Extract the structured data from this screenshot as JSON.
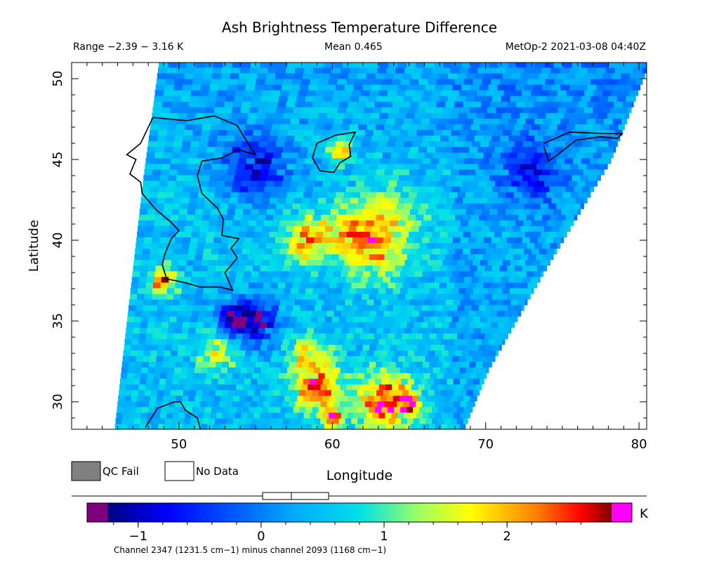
{
  "chart_data": {
    "type": "heatmap",
    "title": "Ash Brightness Temperature Difference",
    "header": {
      "range": "Range −2.39 − 3.16 K",
      "mean": "Mean 0.465",
      "source": "MetOp-2 2021-03-08 04:40Z"
    },
    "xlabel": "Longitude",
    "ylabel": "Latitude",
    "xlim": [
      43,
      80.5
    ],
    "ylim": [
      28.3,
      51
    ],
    "x_ticks": [
      50,
      60,
      70,
      80
    ],
    "y_ticks": [
      30,
      35,
      40,
      45,
      50
    ],
    "legend": [
      {
        "label": "QC Fail",
        "color": "#808080"
      },
      {
        "label": "No Data",
        "color": "#ffffff"
      }
    ],
    "colorbar": {
      "unit": "K",
      "range": [
        -1.25,
        2.85
      ],
      "ticks": [
        -1,
        0,
        1,
        2
      ],
      "tick_labels": [
        "−1",
        "0",
        "1",
        "2"
      ],
      "under_color": "#800080",
      "over_color": "#ff00ff",
      "caption": "Channel 2347 (1231.5 cm−1) minus channel 2093 (1168 cm−1)",
      "stats_box": {
        "mean": 0.465,
        "low": 0.1,
        "high": 0.62
      }
    },
    "swath": {
      "left_edge": [
        [
          48.7,
          51
        ],
        [
          47.7,
          44
        ],
        [
          45.8,
          28.3
        ]
      ],
      "right_edge": [
        [
          80.5,
          50.5
        ],
        [
          78.2,
          45
        ],
        [
          73.8,
          38
        ],
        [
          70.2,
          32
        ],
        [
          68.6,
          28.3
        ]
      ]
    },
    "anomalies": [
      {
        "lon": 58.5,
        "lat": 40.0,
        "value": 2.4,
        "radius": 1.4
      },
      {
        "lon": 61.5,
        "lat": 40.5,
        "value": 2.0,
        "radius": 1.8
      },
      {
        "lon": 64.0,
        "lat": 41.5,
        "value": 1.4,
        "radius": 2.2
      },
      {
        "lon": 63.0,
        "lat": 39.0,
        "value": 1.5,
        "radius": 1.8
      },
      {
        "lon": 60.5,
        "lat": 45.5,
        "value": 2.3,
        "radius": 0.7
      },
      {
        "lon": 49.0,
        "lat": 37.5,
        "value": 2.6,
        "radius": 0.8
      },
      {
        "lon": 55.0,
        "lat": 35.0,
        "value": -1.3,
        "radius": 1.3
      },
      {
        "lon": 53.5,
        "lat": 35.2,
        "value": -0.9,
        "radius": 1.0
      },
      {
        "lon": 59.0,
        "lat": 31.0,
        "value": 2.6,
        "radius": 1.5
      },
      {
        "lon": 58.5,
        "lat": 33.0,
        "value": 1.6,
        "radius": 1.2
      },
      {
        "lon": 63.5,
        "lat": 30.0,
        "value": 2.7,
        "radius": 1.8
      },
      {
        "lon": 65.0,
        "lat": 30.0,
        "value": 3.0,
        "radius": 0.6
      },
      {
        "lon": 52.5,
        "lat": 33.0,
        "value": 1.6,
        "radius": 1.2
      },
      {
        "lon": 55.0,
        "lat": 44.5,
        "value": -0.8,
        "radius": 2.0
      },
      {
        "lon": 73.0,
        "lat": 44.0,
        "value": -0.5,
        "radius": 1.8
      },
      {
        "lon": 60.0,
        "lat": 29.0,
        "value": 2.9,
        "radius": 0.6
      }
    ],
    "coastlines": [
      [
        [
          48.3,
          47.6
        ],
        [
          50.5,
          47.4
        ],
        [
          52.3,
          47.7
        ],
        [
          53.8,
          47.1
        ],
        [
          54.5,
          46.0
        ],
        [
          55.0,
          45.3
        ],
        [
          53.9,
          45.6
        ],
        [
          52.8,
          45.1
        ],
        [
          51.5,
          44.9
        ],
        [
          51.2,
          44.0
        ],
        [
          51.5,
          42.9
        ],
        [
          52.5,
          42.0
        ],
        [
          52.9,
          41.3
        ],
        [
          52.8,
          40.3
        ],
        [
          53.9,
          40.1
        ],
        [
          53.4,
          39.5
        ],
        [
          53.8,
          38.9
        ],
        [
          53.0,
          38.0
        ],
        [
          53.5,
          36.9
        ],
        [
          52.7,
          37.1
        ],
        [
          51.4,
          37.1
        ],
        [
          50.3,
          37.4
        ],
        [
          49.2,
          37.6
        ],
        [
          48.9,
          38.5
        ],
        [
          49.1,
          39.2
        ],
        [
          49.5,
          40.1
        ],
        [
          50.0,
          40.6
        ],
        [
          49.5,
          41.1
        ],
        [
          48.5,
          41.9
        ],
        [
          47.6,
          42.9
        ],
        [
          47.5,
          43.6
        ],
        [
          46.8,
          44.1
        ],
        [
          47.2,
          45.0
        ],
        [
          46.6,
          45.3
        ],
        [
          47.5,
          46.0
        ],
        [
          48.3,
          47.6
        ]
      ],
      [
        [
          59.0,
          46.0
        ],
        [
          60.2,
          46.5
        ],
        [
          61.5,
          46.7
        ],
        [
          61.1,
          45.9
        ],
        [
          61.2,
          45.2
        ],
        [
          60.5,
          44.8
        ],
        [
          60.1,
          44.2
        ],
        [
          59.2,
          44.3
        ],
        [
          58.7,
          45.1
        ],
        [
          59.0,
          46.0
        ]
      ],
      [
        [
          73.8,
          46.0
        ],
        [
          75.5,
          46.7
        ],
        [
          77.8,
          46.6
        ],
        [
          78.9,
          46.6
        ],
        [
          78.6,
          46.3
        ],
        [
          77.5,
          46.4
        ],
        [
          75.9,
          46.2
        ],
        [
          74.7,
          45.3
        ],
        [
          74.1,
          44.9
        ],
        [
          73.8,
          45.8
        ]
      ],
      [
        [
          47.8,
          28.4
        ],
        [
          48.6,
          29.6
        ],
        [
          49.7,
          30.0
        ],
        [
          50.1,
          30.0
        ],
        [
          50.4,
          29.5
        ],
        [
          51.2,
          29.0
        ],
        [
          51.4,
          28.3
        ]
      ]
    ]
  }
}
